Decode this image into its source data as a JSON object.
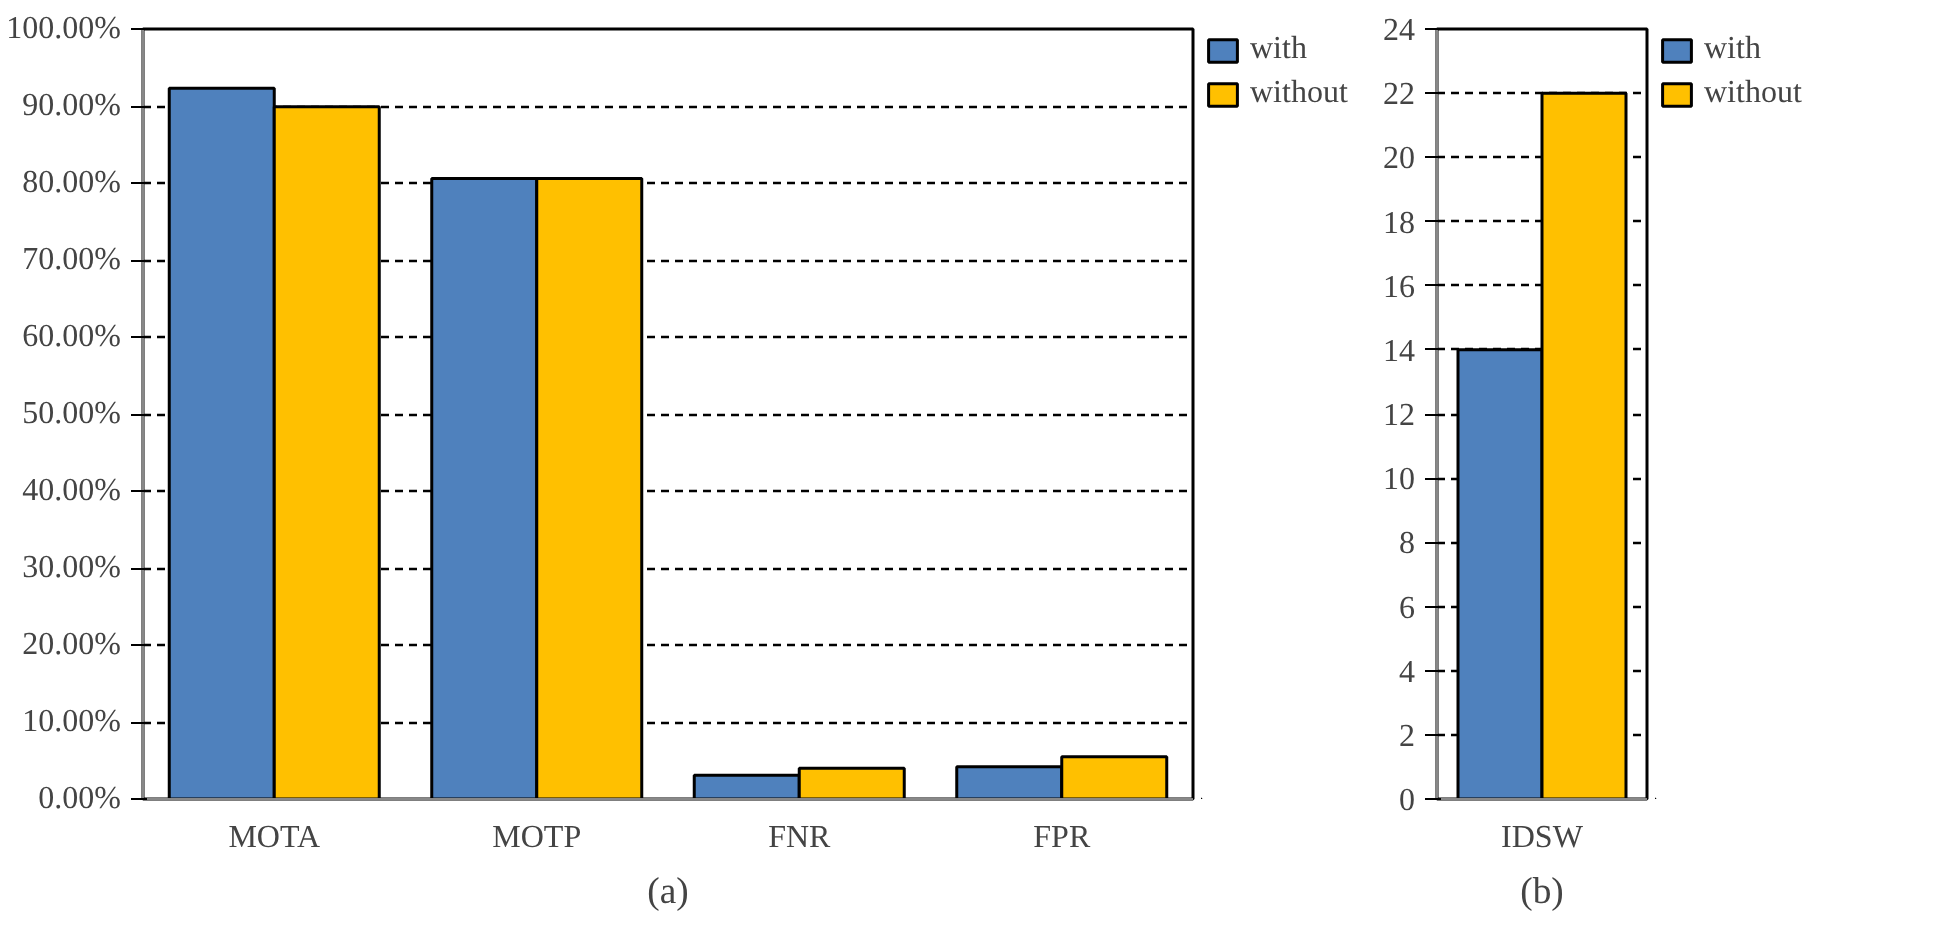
{
  "chart_data": [
    {
      "type": "bar",
      "xlabel": "(a)",
      "categories": [
        "MOTA",
        "MOTP",
        "FNR",
        "FPR"
      ],
      "series": [
        {
          "name": "with",
          "color": "#4f81bd",
          "values": [
            92.3,
            80.6,
            3.1,
            4.2
          ]
        },
        {
          "name": "without",
          "color": "#ffc000",
          "values": [
            89.9,
            80.6,
            4.0,
            5.5
          ]
        }
      ],
      "ylim": [
        0,
        100
      ],
      "yticks": [
        {
          "value": 0,
          "label": "0.00%"
        },
        {
          "value": 10,
          "label": "10.00%"
        },
        {
          "value": 20,
          "label": "20.00%"
        },
        {
          "value": 30,
          "label": "30.00%"
        },
        {
          "value": 40,
          "label": "40.00%"
        },
        {
          "value": 50,
          "label": "50.00%"
        },
        {
          "value": 60,
          "label": "60.00%"
        },
        {
          "value": 70,
          "label": "70.00%"
        },
        {
          "value": 80,
          "label": "80.00%"
        },
        {
          "value": 90,
          "label": "90.00%"
        },
        {
          "value": 100,
          "label": "100.00%"
        }
      ],
      "grid": "y",
      "legend": "top right"
    },
    {
      "type": "bar",
      "xlabel": "(b)",
      "categories": [
        "IDSW"
      ],
      "series": [
        {
          "name": "with",
          "color": "#4f81bd",
          "values": [
            14
          ]
        },
        {
          "name": "without",
          "color": "#ffc000",
          "values": [
            22
          ]
        }
      ],
      "ylim": [
        0,
        24
      ],
      "yticks": [
        0,
        2,
        4,
        6,
        8,
        10,
        12,
        14,
        16,
        18,
        20,
        22,
        24
      ],
      "grid": "y",
      "legend": "top right"
    }
  ]
}
